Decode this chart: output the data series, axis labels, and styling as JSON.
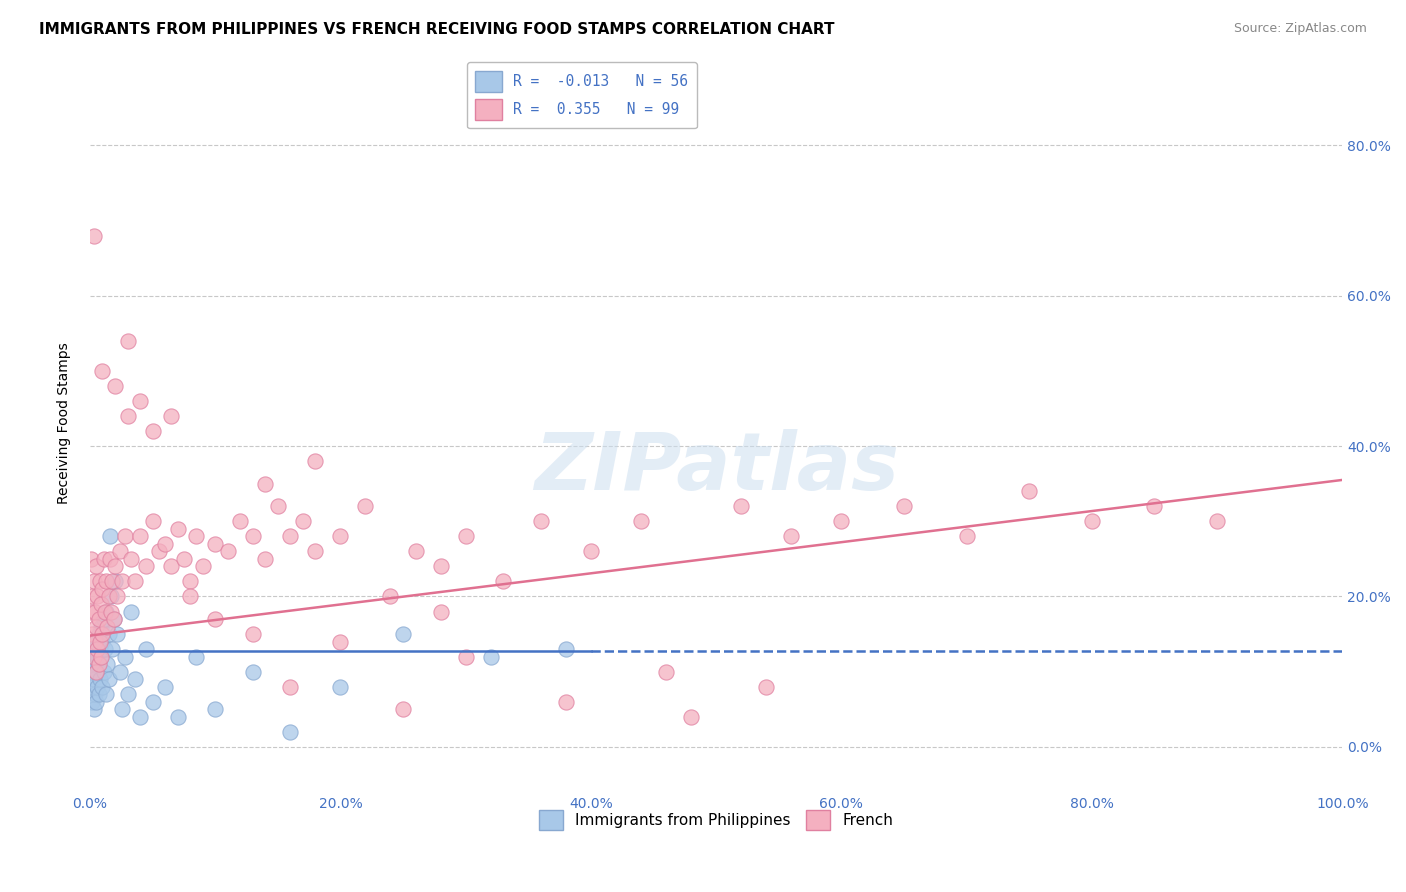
{
  "title": "IMMIGRANTS FROM PHILIPPINES VS FRENCH RECEIVING FOOD STAMPS CORRELATION CHART",
  "source": "Source: ZipAtlas.com",
  "ylabel": "Receiving Food Stamps",
  "xlim": [
    0,
    1.0
  ],
  "ylim": [
    -0.06,
    0.92
  ],
  "yticks": [
    0.0,
    0.2,
    0.4,
    0.6,
    0.8
  ],
  "xticks": [
    0.0,
    0.2,
    0.4,
    0.6,
    0.8,
    1.0
  ],
  "background_color": "#ffffff",
  "grid_color": "#c8c8c8",
  "series": [
    {
      "name": "Immigrants from Philippines",
      "R": -0.013,
      "N": 56,
      "dot_color": "#a8c8e8",
      "dot_edge": "#88a8d0",
      "line_color": "#4472c4",
      "line_style_solid": "-",
      "line_style_dash": "--"
    },
    {
      "name": "French",
      "R": 0.355,
      "N": 99,
      "dot_color": "#f4b0c0",
      "dot_edge": "#e080a0",
      "line_color": "#e07090",
      "line_style": "-"
    }
  ],
  "philippines_x": [
    0.001,
    0.001,
    0.002,
    0.002,
    0.003,
    0.003,
    0.003,
    0.004,
    0.004,
    0.005,
    0.005,
    0.005,
    0.006,
    0.006,
    0.007,
    0.007,
    0.007,
    0.008,
    0.008,
    0.009,
    0.009,
    0.01,
    0.01,
    0.011,
    0.011,
    0.012,
    0.013,
    0.013,
    0.014,
    0.015,
    0.015,
    0.016,
    0.017,
    0.018,
    0.019,
    0.02,
    0.022,
    0.024,
    0.026,
    0.028,
    0.03,
    0.033,
    0.036,
    0.04,
    0.045,
    0.05,
    0.06,
    0.07,
    0.085,
    0.1,
    0.13,
    0.16,
    0.2,
    0.25,
    0.32,
    0.38
  ],
  "philippines_y": [
    0.1,
    0.08,
    0.12,
    0.06,
    0.13,
    0.09,
    0.05,
    0.11,
    0.07,
    0.14,
    0.1,
    0.06,
    0.12,
    0.08,
    0.15,
    0.11,
    0.07,
    0.13,
    0.09,
    0.16,
    0.12,
    0.14,
    0.08,
    0.17,
    0.1,
    0.13,
    0.07,
    0.18,
    0.11,
    0.15,
    0.09,
    0.28,
    0.2,
    0.13,
    0.17,
    0.22,
    0.15,
    0.1,
    0.05,
    0.12,
    0.07,
    0.18,
    0.09,
    0.04,
    0.13,
    0.06,
    0.08,
    0.04,
    0.12,
    0.05,
    0.1,
    0.02,
    0.08,
    0.15,
    0.12,
    0.13
  ],
  "french_x": [
    0.001,
    0.001,
    0.002,
    0.002,
    0.003,
    0.003,
    0.004,
    0.004,
    0.005,
    0.005,
    0.005,
    0.006,
    0.006,
    0.007,
    0.007,
    0.008,
    0.008,
    0.009,
    0.009,
    0.01,
    0.01,
    0.011,
    0.012,
    0.013,
    0.014,
    0.015,
    0.016,
    0.017,
    0.018,
    0.019,
    0.02,
    0.022,
    0.024,
    0.026,
    0.028,
    0.03,
    0.033,
    0.036,
    0.04,
    0.045,
    0.05,
    0.055,
    0.06,
    0.065,
    0.07,
    0.075,
    0.08,
    0.085,
    0.09,
    0.1,
    0.11,
    0.12,
    0.13,
    0.14,
    0.15,
    0.16,
    0.17,
    0.18,
    0.2,
    0.22,
    0.24,
    0.26,
    0.28,
    0.3,
    0.33,
    0.36,
    0.4,
    0.44,
    0.48,
    0.52,
    0.56,
    0.6,
    0.65,
    0.7,
    0.75,
    0.8,
    0.85,
    0.9,
    0.003,
    0.01,
    0.02,
    0.03,
    0.04,
    0.05,
    0.065,
    0.08,
    0.1,
    0.13,
    0.16,
    0.2,
    0.25,
    0.3,
    0.38,
    0.46,
    0.54,
    0.14,
    0.18,
    0.28
  ],
  "french_y": [
    0.25,
    0.18,
    0.2,
    0.15,
    0.22,
    0.12,
    0.18,
    0.14,
    0.24,
    0.16,
    0.1,
    0.2,
    0.13,
    0.17,
    0.11,
    0.22,
    0.14,
    0.19,
    0.12,
    0.21,
    0.15,
    0.25,
    0.18,
    0.22,
    0.16,
    0.2,
    0.25,
    0.18,
    0.22,
    0.17,
    0.24,
    0.2,
    0.26,
    0.22,
    0.28,
    0.54,
    0.25,
    0.22,
    0.28,
    0.24,
    0.3,
    0.26,
    0.27,
    0.24,
    0.29,
    0.25,
    0.22,
    0.28,
    0.24,
    0.27,
    0.26,
    0.3,
    0.28,
    0.25,
    0.32,
    0.28,
    0.3,
    0.26,
    0.28,
    0.32,
    0.2,
    0.26,
    0.24,
    0.28,
    0.22,
    0.3,
    0.26,
    0.3,
    0.04,
    0.32,
    0.28,
    0.3,
    0.32,
    0.28,
    0.34,
    0.3,
    0.32,
    0.3,
    0.68,
    0.5,
    0.48,
    0.44,
    0.46,
    0.42,
    0.44,
    0.2,
    0.17,
    0.15,
    0.08,
    0.14,
    0.05,
    0.12,
    0.06,
    0.1,
    0.08,
    0.35,
    0.38,
    0.18
  ],
  "phil_line_x0": 0.0,
  "phil_line_x1": 0.4,
  "phil_line_x_dash0": 0.4,
  "phil_line_x_dash1": 1.0,
  "phil_line_y": 0.127,
  "french_line_x0": 0.0,
  "french_line_x1": 1.0,
  "french_line_y0": 0.148,
  "french_line_y1": 0.355
}
